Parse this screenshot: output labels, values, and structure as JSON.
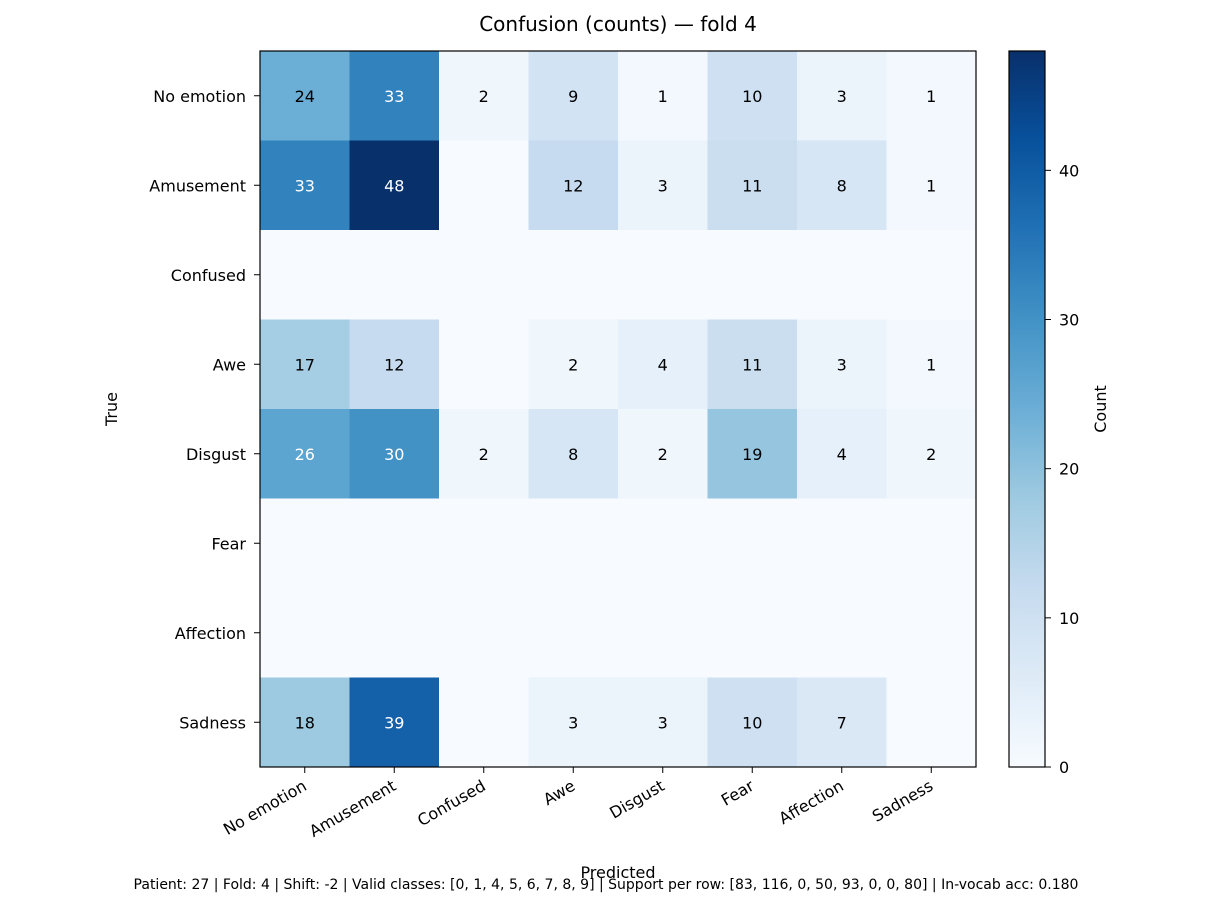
{
  "chart_data": {
    "type": "heatmap",
    "title": "Confusion (counts) — fold 4",
    "xlabel": "Predicted",
    "ylabel": "True",
    "x_categories": [
      "No emotion",
      "Amusement",
      "Confused",
      "Awe",
      "Disgust",
      "Fear",
      "Affection",
      "Sadness"
    ],
    "y_categories": [
      "No emotion",
      "Amusement",
      "Confused",
      "Awe",
      "Disgust",
      "Fear",
      "Affection",
      "Sadness"
    ],
    "values": [
      [
        24,
        33,
        2,
        9,
        1,
        10,
        3,
        1
      ],
      [
        33,
        48,
        0,
        12,
        3,
        11,
        8,
        1
      ],
      [
        0,
        0,
        0,
        0,
        0,
        0,
        0,
        0
      ],
      [
        17,
        12,
        0,
        2,
        4,
        11,
        3,
        1
      ],
      [
        26,
        30,
        2,
        8,
        2,
        19,
        4,
        2
      ],
      [
        0,
        0,
        0,
        0,
        0,
        0,
        0,
        0
      ],
      [
        0,
        0,
        0,
        0,
        0,
        0,
        0,
        0
      ],
      [
        18,
        39,
        0,
        3,
        3,
        10,
        7,
        0
      ]
    ],
    "show_zero_labels": false,
    "colormap": "Blues",
    "colorbar": {
      "label": "Count",
      "range": [
        0,
        48
      ],
      "ticks": [
        0,
        10,
        20,
        30,
        40
      ]
    },
    "footer": "Patient: 27 | Fold: 4 | Shift: -2 | Valid classes: [0, 1, 4, 5, 6, 7, 8, 9] | Support per row: [83, 116, 0, 50, 93, 0, 0, 80] | In-vocab acc: 0.180"
  }
}
